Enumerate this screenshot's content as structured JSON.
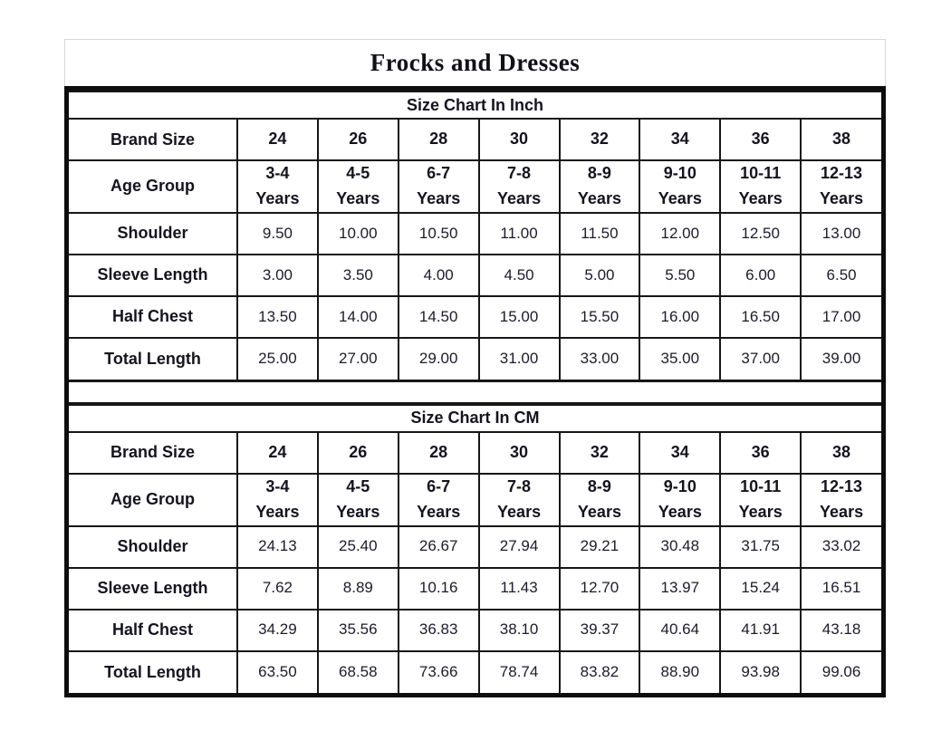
{
  "title": "Frocks and Dresses",
  "colors": {
    "background": "#ffffff",
    "outer_border": "#0d0d0d",
    "inner_border": "#161616",
    "text": "#1b1b26",
    "title_box_border": "#d7d7d7"
  },
  "tables": [
    {
      "title": "Size Chart In Inch",
      "rows": [
        {
          "label": "Brand Size",
          "bold": true,
          "values": [
            "24",
            "26",
            "28",
            "30",
            "32",
            "34",
            "36",
            "38"
          ]
        },
        {
          "label": "Age Group",
          "bold": true,
          "tall": true,
          "values": [
            "3-4\nYears",
            "4-5\nYears",
            "6-7\nYears",
            "7-8\nYears",
            "8-9\nYears",
            "9-10\nYears",
            "10-11\nYears",
            "12-13\nYears"
          ]
        },
        {
          "label": "Shoulder",
          "values": [
            "9.50",
            "10.00",
            "10.50",
            "11.00",
            "11.50",
            "12.00",
            "12.50",
            "13.00"
          ]
        },
        {
          "label": "Sleeve Length",
          "values": [
            "3.00",
            "3.50",
            "4.00",
            "4.50",
            "5.00",
            "5.50",
            "6.00",
            "6.50"
          ]
        },
        {
          "label": "Half Chest",
          "values": [
            "13.50",
            "14.00",
            "14.50",
            "15.00",
            "15.50",
            "16.00",
            "16.50",
            "17.00"
          ]
        },
        {
          "label": "Total Length",
          "values": [
            "25.00",
            "27.00",
            "29.00",
            "31.00",
            "33.00",
            "35.00",
            "37.00",
            "39.00"
          ]
        }
      ]
    },
    {
      "title": "Size Chart In CM",
      "rows": [
        {
          "label": "Brand Size",
          "bold": true,
          "values": [
            "24",
            "26",
            "28",
            "30",
            "32",
            "34",
            "36",
            "38"
          ]
        },
        {
          "label": "Age Group",
          "bold": true,
          "tall": true,
          "values": [
            "3-4\nYears",
            "4-5\nYears",
            "6-7\nYears",
            "7-8\nYears",
            "8-9\nYears",
            "9-10\nYears",
            "10-11\nYears",
            "12-13\nYears"
          ]
        },
        {
          "label": "Shoulder",
          "values": [
            "24.13",
            "25.40",
            "26.67",
            "27.94",
            "29.21",
            "30.48",
            "31.75",
            "33.02"
          ]
        },
        {
          "label": "Sleeve Length",
          "values": [
            "7.62",
            "8.89",
            "10.16",
            "11.43",
            "12.70",
            "13.97",
            "15.24",
            "16.51"
          ]
        },
        {
          "label": "Half Chest",
          "values": [
            "34.29",
            "35.56",
            "36.83",
            "38.10",
            "39.37",
            "40.64",
            "41.91",
            "43.18"
          ]
        },
        {
          "label": "Total Length",
          "values": [
            "63.50",
            "68.58",
            "73.66",
            "78.74",
            "83.82",
            "88.90",
            "93.98",
            "99.06"
          ]
        }
      ]
    }
  ]
}
